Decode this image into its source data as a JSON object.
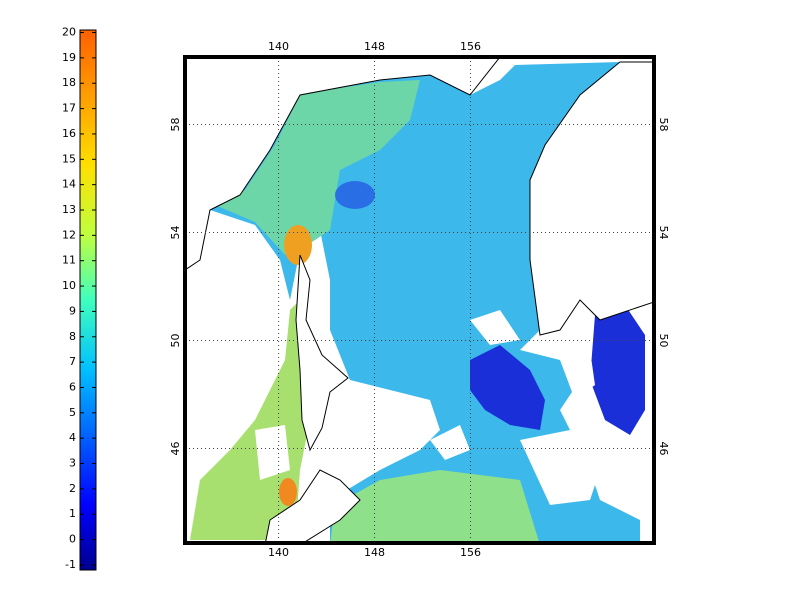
{
  "colorbar": {
    "ticks": [
      -1,
      0,
      1,
      2,
      3,
      4,
      5,
      6,
      7,
      8,
      9,
      10,
      11,
      12,
      13,
      14,
      15,
      16,
      17,
      18,
      19,
      20
    ],
    "lim": [
      -1.2,
      20.1
    ]
  },
  "map": {
    "lon_ticks": [
      140,
      148,
      156
    ],
    "lat_ticks": [
      46,
      50,
      54,
      58
    ],
    "xlim": [
      132.2,
      171.3
    ],
    "ylim": [
      42.5,
      60.5
    ]
  }
}
